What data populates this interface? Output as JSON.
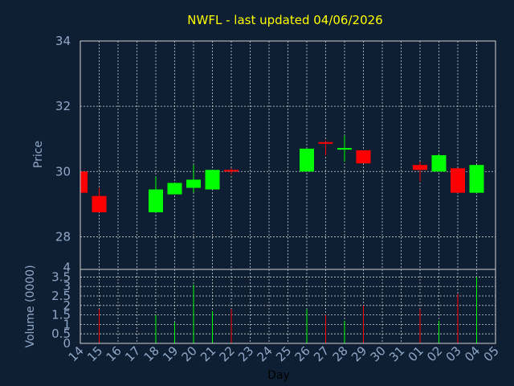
{
  "chart_data": {
    "type": "candlestick",
    "title": "NWFL - last updated 04/06/2026",
    "xlabel": "Day",
    "price_panel": {
      "ylabel": "Price",
      "ylim": [
        27,
        34
      ],
      "yticks": [
        "28",
        "30",
        "32",
        "34"
      ],
      "grid": true
    },
    "volume_panel": {
      "ylabel": "Volume (0000)",
      "ylim": [
        0,
        3.9
      ],
      "yticks": [
        "0",
        "0.5",
        "1",
        "1.5",
        "2",
        "2.5",
        "3",
        "3.5",
        "4"
      ],
      "grid": true
    },
    "x_ticks": [
      "14",
      "15",
      "16",
      "17",
      "18",
      "19",
      "20",
      "21",
      "22",
      "23",
      "24",
      "25",
      "26",
      "27",
      "28",
      "29",
      "30",
      "31",
      "01",
      "02",
      "03",
      "04",
      "05"
    ],
    "colors": {
      "up": "#00ff00",
      "down": "#ff0000",
      "background": "#0f1f33",
      "grid": "#d0d0d0",
      "title": "#ffff00",
      "axis_text": "#8fa8c8"
    },
    "candles": [
      {
        "day": "14",
        "open": 30.0,
        "close": 29.35,
        "high": 30.0,
        "low": 29.35,
        "volume": 0
      },
      {
        "day": "15",
        "open": 29.25,
        "close": 28.75,
        "high": 29.5,
        "low": 28.75,
        "volume": 1.8
      },
      {
        "day": "18",
        "open": 28.75,
        "close": 29.45,
        "high": 29.85,
        "low": 28.75,
        "volume": 1.5
      },
      {
        "day": "19",
        "open": 29.3,
        "close": 29.65,
        "high": 29.65,
        "low": 29.3,
        "volume": 1.1
      },
      {
        "day": "20",
        "open": 29.5,
        "close": 29.75,
        "high": 30.2,
        "low": 29.35,
        "volume": 3.1
      },
      {
        "day": "21",
        "open": 29.45,
        "close": 30.05,
        "high": 30.05,
        "low": 29.45,
        "volume": 1.7
      },
      {
        "day": "22",
        "open": 30.05,
        "close": 30.0,
        "high": 30.1,
        "low": 29.9,
        "volume": 1.8
      },
      {
        "day": "26",
        "open": 30.0,
        "close": 30.7,
        "high": 30.7,
        "low": 30.0,
        "volume": 1.8
      },
      {
        "day": "27",
        "open": 30.9,
        "close": 30.85,
        "high": 30.95,
        "low": 30.5,
        "volume": 1.5
      },
      {
        "day": "28",
        "open": 30.7,
        "close": 30.72,
        "high": 31.1,
        "low": 30.3,
        "volume": 1.2
      },
      {
        "day": "29",
        "open": 30.65,
        "close": 30.25,
        "high": 30.65,
        "low": 30.25,
        "volume": 2.0
      },
      {
        "day": "01",
        "open": 30.2,
        "close": 30.05,
        "high": 30.3,
        "low": 29.7,
        "volume": 1.8
      },
      {
        "day": "02",
        "open": 30.0,
        "close": 30.5,
        "high": 30.55,
        "low": 30.0,
        "volume": 1.2
      },
      {
        "day": "03",
        "open": 30.1,
        "close": 29.35,
        "high": 30.1,
        "low": 29.35,
        "volume": 2.6
      },
      {
        "day": "04",
        "open": 29.35,
        "close": 30.2,
        "high": 30.2,
        "low": 29.35,
        "volume": 3.5
      }
    ]
  }
}
